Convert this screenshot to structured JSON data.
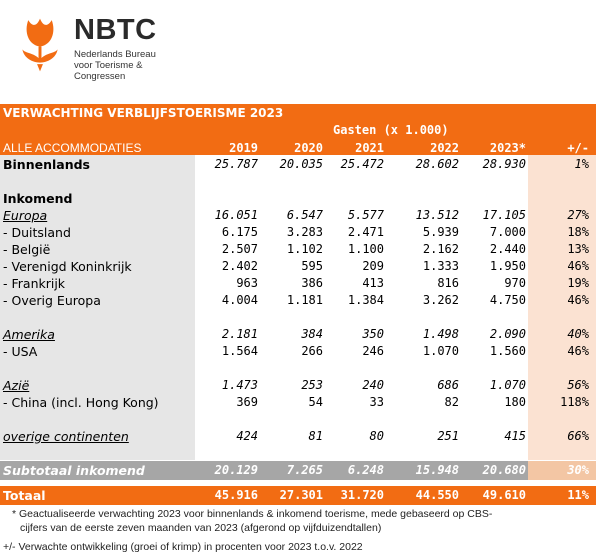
{
  "logo": {
    "icon": "tulip-logo",
    "brand": "NBTC",
    "sub_lines": [
      "Nederlands Bureau",
      "voor Toerisme &",
      "Congressen"
    ],
    "color": "#f26c13"
  },
  "table": {
    "title": "VERWACHTING VERBLIJFSTOERISME 2023",
    "group_header": "Gasten (x 1.000)",
    "row_header": "ALLE ACCOMMODATIES",
    "columns": [
      "2019",
      "2020",
      "2021",
      "2022",
      "2023*",
      "+/-"
    ],
    "rows": [
      {
        "label": "Binnenlands",
        "values": [
          "25.787",
          "20.035",
          "25.472",
          "28.602",
          "28.930",
          "1%"
        ],
        "style": "bold-label-italic-values"
      },
      {
        "label": "Inkomend",
        "values": [
          "",
          "",
          "",
          "",
          "",
          ""
        ],
        "style": "bold"
      },
      {
        "label": "Europa",
        "values": [
          "16.051",
          "6.547",
          "5.577",
          "13.512",
          "17.105",
          "27%"
        ],
        "style": "ital-ul"
      },
      {
        "label": "- Duitsland",
        "values": [
          "6.175",
          "3.283",
          "2.471",
          "5.939",
          "7.000",
          "18%"
        ],
        "style": "normal"
      },
      {
        "label": "- België",
        "values": [
          "2.507",
          "1.102",
          "1.100",
          "2.162",
          "2.440",
          "13%"
        ],
        "style": "normal"
      },
      {
        "label": "- Verenigd Koninkrijk",
        "values": [
          "2.402",
          "595",
          "209",
          "1.333",
          "1.950",
          "46%"
        ],
        "style": "normal"
      },
      {
        "label": "- Frankrijk",
        "values": [
          "963",
          "386",
          "413",
          "816",
          "970",
          "19%"
        ],
        "style": "normal"
      },
      {
        "label": "- Overig Europa",
        "values": [
          "4.004",
          "1.181",
          "1.384",
          "3.262",
          "4.750",
          "46%"
        ],
        "style": "normal"
      },
      {
        "label": "Amerika",
        "values": [
          "2.181",
          "384",
          "350",
          "1.498",
          "2.090",
          "40%"
        ],
        "style": "ital-ul"
      },
      {
        "label": "- USA",
        "values": [
          "1.564",
          "266",
          "246",
          "1.070",
          "1.560",
          "46%"
        ],
        "style": "normal"
      },
      {
        "label": "Azië",
        "values": [
          "1.473",
          "253",
          "240",
          "686",
          "1.070",
          "56%"
        ],
        "style": "ital-ul"
      },
      {
        "label": "- China (incl. Hong Kong)",
        "values": [
          "369",
          "54",
          "33",
          "82",
          "180",
          "118%"
        ],
        "style": "normal"
      },
      {
        "label": "overige continenten",
        "values": [
          "424",
          "81",
          "80",
          "251",
          "415",
          "66%"
        ],
        "style": "ital-ul"
      }
    ],
    "subtotal": {
      "label": "Subtotaal inkomend",
      "values": [
        "20.129",
        "7.265",
        "6.248",
        "15.948",
        "20.680",
        "30%"
      ]
    },
    "total": {
      "label": "Totaal",
      "values": [
        "45.916",
        "27.301",
        "31.720",
        "44.550",
        "49.610",
        "11%"
      ]
    }
  },
  "notes": [
    "* Geactualiseerde verwachting 2023 voor binnenlands & inkomend toerisme, mede gebaseerd op CBS-",
    "cijfers van de eerste zeven maanden van 2023 (afgerond op vijfduizendtallen)",
    "+/- Verwachte ontwikkeling (groei of krimp) in procenten voor 2023 t.o.v. 2022"
  ],
  "colors": {
    "accent": "#f26c13",
    "grey_col": "#e6e6e6",
    "peach_col": "#fbe2d2",
    "subtotal": "#a6a6a6"
  }
}
